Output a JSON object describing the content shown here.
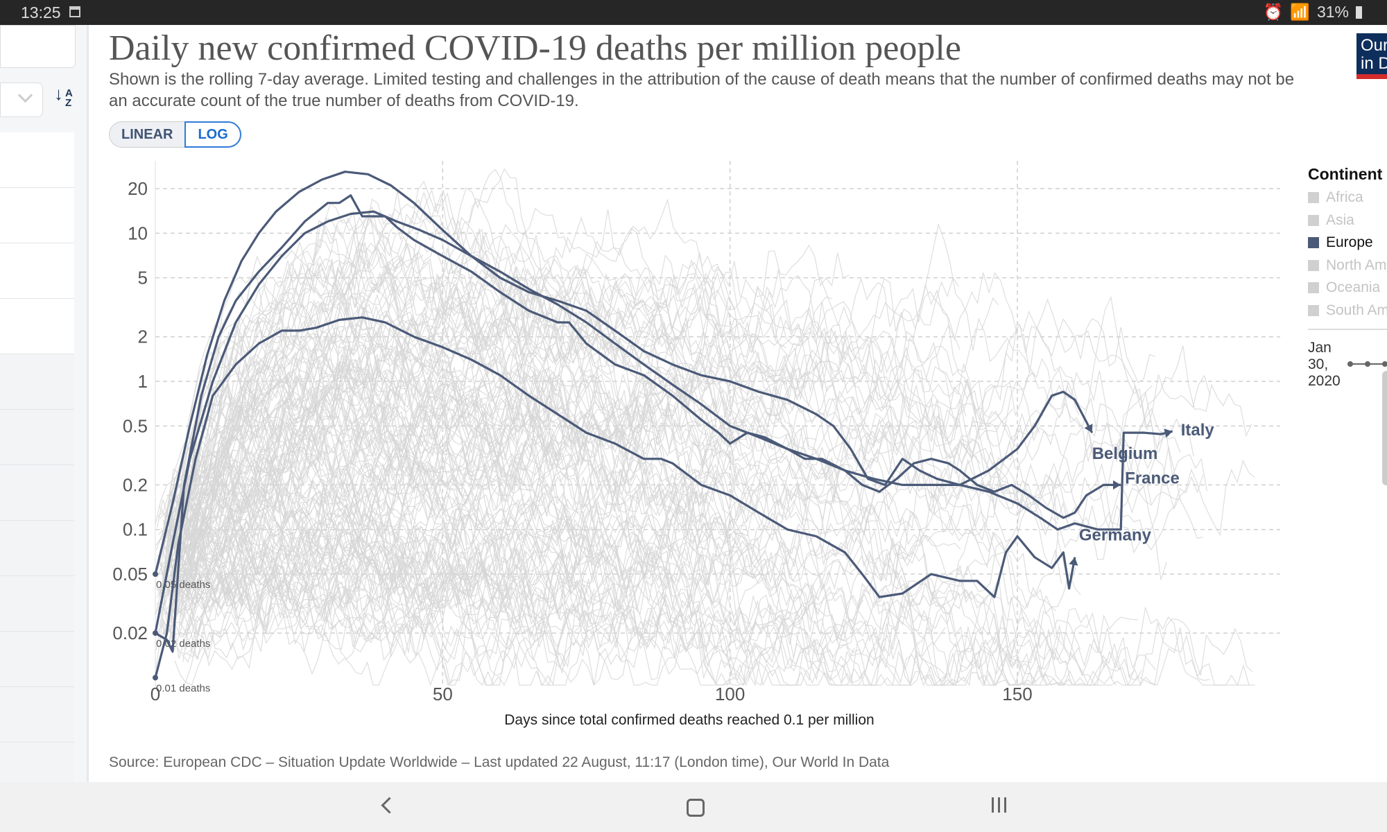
{
  "status_bar": {
    "time": "13:25",
    "battery": "31%",
    "icons": [
      "calendar-icon",
      "alarm-icon",
      "wifi-icon",
      "battery-icon"
    ]
  },
  "header": {
    "title": "Daily new confirmed COVID-19 deaths per million people",
    "subtitle": "Shown is the rolling 7-day average. Limited testing and challenges in the attribution of the cause of death means that the number of confirmed deaths may not be an accurate count of the true number of deaths from COVID-19."
  },
  "scale_toggle": {
    "linear": "LINEAR",
    "log": "LOG",
    "selected": "LOG"
  },
  "logo": {
    "line1": "Our World",
    "line2": "in Data"
  },
  "legend": {
    "title": "Continent",
    "items": [
      {
        "label": "Africa",
        "active": false
      },
      {
        "label": "Asia",
        "active": false
      },
      {
        "label": "Europe",
        "active": true
      },
      {
        "label": "North America",
        "active": false
      },
      {
        "label": "Oceania",
        "active": false
      },
      {
        "label": "South America",
        "active": false
      }
    ]
  },
  "timeline": {
    "start_label": "Jan 30, 2020"
  },
  "source": "Source: European CDC – Situation Update Worldwide – Last updated 22 August, 11:17 (London time), Our World In Data",
  "colors": {
    "highlight": "#4b5a78",
    "background_lines": "#d6d6d6",
    "grid": "#cfcfcf",
    "toggle_active": "#2f7ad9",
    "logo_bg": "#0e2e5c",
    "logo_accent": "#d42b2b"
  },
  "chart_data": {
    "type": "line",
    "title": "Daily new confirmed COVID-19 deaths per million people",
    "xlabel": "Days since total confirmed deaths reached 0.1 per million",
    "ylabel": "",
    "yscale": "log",
    "xlim": [
      0,
      196
    ],
    "ylim": [
      0.008,
      40
    ],
    "x_ticks": [
      0,
      50,
      100,
      150
    ],
    "y_ticks": [
      0.02,
      0.05,
      0.1,
      0.2,
      0.5,
      1,
      2,
      5,
      10,
      20
    ],
    "y_tick_labels": [
      "0.02",
      "0.05",
      "0.1",
      "0.2",
      "0.5",
      "1",
      "2",
      "5",
      "10",
      "20"
    ],
    "grid": true,
    "legend_position": "right",
    "start_annotations": [
      {
        "label": "0.05 deaths",
        "value": 0.05
      },
      {
        "label": "0.02 deaths",
        "value": 0.02
      },
      {
        "label": "0.01 deaths",
        "value": 0.01
      }
    ],
    "series": [
      {
        "name": "Belgium",
        "points": [
          [
            0,
            0.05
          ],
          [
            3,
            0.15
          ],
          [
            6,
            0.5
          ],
          [
            9,
            1.5
          ],
          [
            12,
            3.5
          ],
          [
            15,
            6.5
          ],
          [
            18,
            10
          ],
          [
            21,
            14
          ],
          [
            25,
            19
          ],
          [
            29,
            23
          ],
          [
            33,
            26
          ],
          [
            37,
            25
          ],
          [
            41,
            21
          ],
          [
            45,
            16
          ],
          [
            50,
            10.5
          ],
          [
            55,
            7
          ],
          [
            60,
            5
          ],
          [
            65,
            4
          ],
          [
            70,
            3.5
          ],
          [
            75,
            3
          ],
          [
            80,
            2.2
          ],
          [
            85,
            1.6
          ],
          [
            90,
            1.3
          ],
          [
            95,
            1.1
          ],
          [
            100,
            1.0
          ],
          [
            105,
            0.85
          ],
          [
            110,
            0.75
          ],
          [
            115,
            0.6
          ],
          [
            118,
            0.5
          ],
          [
            121,
            0.35
          ],
          [
            124,
            0.22
          ],
          [
            127,
            0.2
          ],
          [
            130,
            0.3
          ],
          [
            133,
            0.25
          ],
          [
            136,
            0.22
          ],
          [
            140,
            0.2
          ],
          [
            145,
            0.25
          ],
          [
            150,
            0.35
          ],
          [
            153,
            0.5
          ],
          [
            156,
            0.8
          ],
          [
            158,
            0.85
          ],
          [
            160,
            0.75
          ],
          [
            163,
            0.45
          ]
        ]
      },
      {
        "name": "Italy",
        "points": [
          [
            0,
            0.02
          ],
          [
            3,
            0.08
          ],
          [
            6,
            0.3
          ],
          [
            10,
            1
          ],
          [
            14,
            2.5
          ],
          [
            18,
            4.5
          ],
          [
            22,
            7
          ],
          [
            26,
            10
          ],
          [
            30,
            12
          ],
          [
            34,
            13.5
          ],
          [
            38,
            14
          ],
          [
            42,
            12
          ],
          [
            46,
            10.5
          ],
          [
            50,
            9
          ],
          [
            55,
            7
          ],
          [
            60,
            5.5
          ],
          [
            65,
            4.2
          ],
          [
            70,
            3.3
          ],
          [
            75,
            2.5
          ],
          [
            80,
            1.8
          ],
          [
            85,
            1.3
          ],
          [
            90,
            0.95
          ],
          [
            95,
            0.7
          ],
          [
            100,
            0.5
          ],
          [
            105,
            0.42
          ],
          [
            110,
            0.35
          ],
          [
            115,
            0.3
          ],
          [
            120,
            0.25
          ],
          [
            125,
            0.22
          ],
          [
            130,
            0.2
          ],
          [
            135,
            0.2
          ],
          [
            140,
            0.2
          ],
          [
            145,
            0.18
          ],
          [
            150,
            0.15
          ],
          [
            154,
            0.12
          ],
          [
            157,
            0.1
          ],
          [
            160,
            0.11
          ],
          [
            164,
            0.1
          ],
          [
            168,
            0.1
          ],
          [
            168.5,
            0.45
          ],
          [
            172,
            0.45
          ],
          [
            175,
            0.44
          ],
          [
            177,
            0.46
          ]
        ]
      },
      {
        "name": "France",
        "points": [
          [
            0,
            0.02
          ],
          [
            2,
            0.018
          ],
          [
            3,
            0.015
          ],
          [
            5,
            0.2
          ],
          [
            8,
            0.8
          ],
          [
            11,
            2
          ],
          [
            14,
            3.5
          ],
          [
            18,
            5.5
          ],
          [
            22,
            8
          ],
          [
            26,
            12
          ],
          [
            30,
            16
          ],
          [
            32,
            16
          ],
          [
            34,
            18
          ],
          [
            36,
            13
          ],
          [
            40,
            13
          ],
          [
            42,
            11
          ],
          [
            45,
            9
          ],
          [
            50,
            7
          ],
          [
            55,
            5.5
          ],
          [
            60,
            4
          ],
          [
            65,
            3
          ],
          [
            70,
            2.5
          ],
          [
            72,
            2.5
          ],
          [
            75,
            1.8
          ],
          [
            80,
            1.3
          ],
          [
            85,
            1.1
          ],
          [
            90,
            0.8
          ],
          [
            95,
            0.55
          ],
          [
            98,
            0.45
          ],
          [
            100,
            0.38
          ],
          [
            103,
            0.45
          ],
          [
            106,
            0.42
          ],
          [
            110,
            0.35
          ],
          [
            113,
            0.3
          ],
          [
            116,
            0.3
          ],
          [
            120,
            0.25
          ],
          [
            123,
            0.2
          ],
          [
            126,
            0.18
          ],
          [
            129,
            0.22
          ],
          [
            132,
            0.28
          ],
          [
            135,
            0.3
          ],
          [
            138,
            0.28
          ],
          [
            140,
            0.25
          ],
          [
            143,
            0.2
          ],
          [
            146,
            0.18
          ],
          [
            149,
            0.2
          ],
          [
            152,
            0.17
          ],
          [
            155,
            0.14
          ],
          [
            158,
            0.12
          ],
          [
            160,
            0.13
          ],
          [
            162,
            0.17
          ],
          [
            165,
            0.2
          ],
          [
            168,
            0.2
          ]
        ]
      },
      {
        "name": "Germany",
        "points": [
          [
            0,
            0.01
          ],
          [
            2,
            0.02
          ],
          [
            4,
            0.08
          ],
          [
            7,
            0.3
          ],
          [
            10,
            0.8
          ],
          [
            14,
            1.3
          ],
          [
            18,
            1.8
          ],
          [
            22,
            2.2
          ],
          [
            25,
            2.2
          ],
          [
            28,
            2.3
          ],
          [
            32,
            2.6
          ],
          [
            36,
            2.7
          ],
          [
            40,
            2.5
          ],
          [
            45,
            2
          ],
          [
            50,
            1.7
          ],
          [
            55,
            1.4
          ],
          [
            60,
            1.1
          ],
          [
            65,
            0.8
          ],
          [
            70,
            0.6
          ],
          [
            75,
            0.45
          ],
          [
            80,
            0.38
          ],
          [
            85,
            0.3
          ],
          [
            88,
            0.3
          ],
          [
            90,
            0.28
          ],
          [
            95,
            0.2
          ],
          [
            100,
            0.17
          ],
          [
            105,
            0.13
          ],
          [
            110,
            0.1
          ],
          [
            115,
            0.09
          ],
          [
            120,
            0.07
          ],
          [
            123,
            0.05
          ],
          [
            126,
            0.035
          ],
          [
            130,
            0.037
          ],
          [
            135,
            0.05
          ],
          [
            140,
            0.045
          ],
          [
            143,
            0.045
          ],
          [
            146,
            0.035
          ],
          [
            148,
            0.07
          ],
          [
            150,
            0.09
          ],
          [
            153,
            0.065
          ],
          [
            156,
            0.055
          ],
          [
            158,
            0.07
          ],
          [
            159,
            0.04
          ],
          [
            160,
            0.065
          ]
        ]
      }
    ]
  }
}
